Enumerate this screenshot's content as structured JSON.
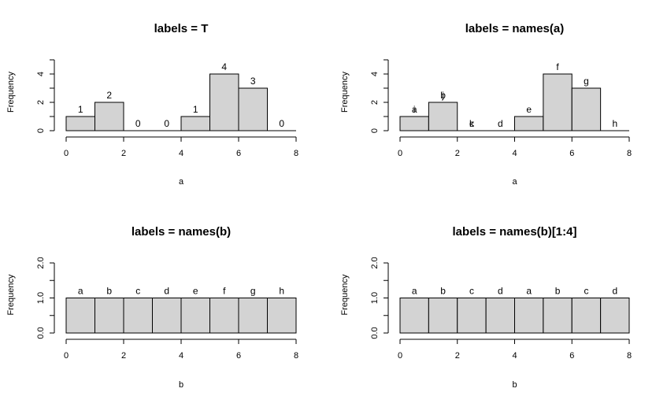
{
  "chart_data": [
    {
      "type": "bar",
      "title": "labels = T",
      "xlabel": "a",
      "ylabel": "Frequency",
      "bin_edges": [
        0,
        1,
        2,
        3,
        4,
        5,
        6,
        7,
        8
      ],
      "values": [
        1,
        2,
        0,
        0,
        1,
        4,
        3,
        0
      ],
      "bar_labels": [
        "1",
        "2",
        "0",
        "0",
        "1",
        "4",
        "3",
        "0"
      ],
      "extra_labels": [],
      "xlim": [
        0,
        8
      ],
      "ylim": [
        0,
        5
      ],
      "xticks": [
        "0",
        "2",
        "4",
        "6",
        "8"
      ],
      "yticks": [
        "0",
        "2",
        "4"
      ],
      "ytick_values": [
        0,
        2,
        4
      ],
      "grid": false
    },
    {
      "type": "bar",
      "title": "labels = names(a)",
      "xlabel": "a",
      "ylabel": "Frequency",
      "bin_edges": [
        0,
        1,
        2,
        3,
        4,
        5,
        6,
        7,
        8
      ],
      "values": [
        1,
        2,
        0,
        0,
        1,
        4,
        3,
        0
      ],
      "bar_labels": [
        "a",
        "b",
        "c",
        "d",
        "e",
        "f",
        "g",
        "h"
      ],
      "extra_labels": [
        {
          "bin": 0,
          "text": "i"
        },
        {
          "bin": 1,
          "text": "j"
        },
        {
          "bin": 2,
          "text": "k"
        }
      ],
      "xlim": [
        0,
        8
      ],
      "ylim": [
        0,
        5
      ],
      "xticks": [
        "0",
        "2",
        "4",
        "6",
        "8"
      ],
      "yticks": [
        "0",
        "2",
        "4"
      ],
      "ytick_values": [
        0,
        2,
        4
      ],
      "grid": false
    },
    {
      "type": "bar",
      "title": "labels = names(b)",
      "xlabel": "b",
      "ylabel": "Frequency",
      "bin_edges": [
        0,
        1,
        2,
        3,
        4,
        5,
        6,
        7,
        8
      ],
      "values": [
        1,
        1,
        1,
        1,
        1,
        1,
        1,
        1
      ],
      "bar_labels": [
        "a",
        "b",
        "c",
        "d",
        "e",
        "f",
        "g",
        "h"
      ],
      "extra_labels": [],
      "xlim": [
        0,
        8
      ],
      "ylim": [
        0,
        2
      ],
      "xticks": [
        "0",
        "2",
        "4",
        "6",
        "8"
      ],
      "yticks": [
        "0.0",
        "1.0",
        "2.0"
      ],
      "ytick_values": [
        0,
        1,
        2
      ],
      "grid": false
    },
    {
      "type": "bar",
      "title": "labels = names(b)[1:4]",
      "xlabel": "b",
      "ylabel": "Frequency",
      "bin_edges": [
        0,
        1,
        2,
        3,
        4,
        5,
        6,
        7,
        8
      ],
      "values": [
        1,
        1,
        1,
        1,
        1,
        1,
        1,
        1
      ],
      "bar_labels": [
        "a",
        "b",
        "c",
        "d",
        "a",
        "b",
        "c",
        "d"
      ],
      "extra_labels": [],
      "xlim": [
        0,
        8
      ],
      "ylim": [
        0,
        2
      ],
      "xticks": [
        "0",
        "2",
        "4",
        "6",
        "8"
      ],
      "yticks": [
        "0.0",
        "1.0",
        "2.0"
      ],
      "ytick_values": [
        0,
        1,
        2
      ],
      "grid": false
    }
  ]
}
